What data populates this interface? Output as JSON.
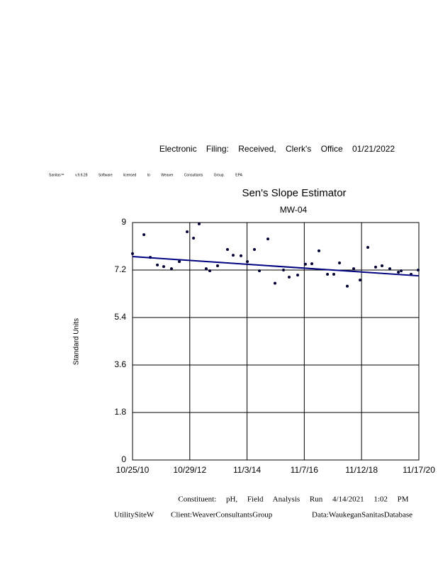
{
  "header": {
    "filing": "Electronic Filing: Received, Clerk's Office 01/21/2022",
    "software": "Sanitas™ v.9.6.28 Software licensed to Weaver Consultants Group. EPA"
  },
  "chart_data": {
    "type": "scatter",
    "title": "Sen's Slope Estimator",
    "subtitle": "MW-04",
    "y_label": "Standard Units",
    "x": [
      "2010-10-25",
      "2011-03-20",
      "2011-06-10",
      "2011-09-09",
      "2011-11-29",
      "2012-03-08",
      "2012-06-17",
      "2012-09-25",
      "2012-12-16",
      "2013-02-26",
      "2013-05-28",
      "2013-07-13",
      "2013-10-21",
      "2014-02-25",
      "2014-05-09",
      "2014-08-17",
      "2014-11-07",
      "2015-02-06",
      "2015-04-11",
      "2015-07-29",
      "2015-10-28",
      "2016-02-14",
      "2016-04-27",
      "2016-08-14",
      "2016-11-22",
      "2017-02-12",
      "2017-05-14",
      "2017-09-01",
      "2017-11-21",
      "2018-02-02",
      "2018-05-13",
      "2018-08-03",
      "2018-10-24",
      "2019-02-01",
      "2019-05-12",
      "2019-08-02",
      "2019-11-10",
      "2020-02-28",
      "2020-04-04",
      "2020-08-09",
      "2020-11-08"
    ],
    "values": [
      7.82,
      8.54,
      7.68,
      7.39,
      7.33,
      7.25,
      7.52,
      8.65,
      8.41,
      8.95,
      7.25,
      7.17,
      7.36,
      7.98,
      7.76,
      7.74,
      7.52,
      7.98,
      7.17,
      8.38,
      6.7,
      7.2,
      6.93,
      7.01,
      7.42,
      7.44,
      7.93,
      7.04,
      7.04,
      7.47,
      6.59,
      7.25,
      6.82,
      8.06,
      7.31,
      7.36,
      7.25,
      7.12,
      7.17,
      7.04,
      7.2
    ],
    "color": "#000033",
    "trend": {
      "x": [
        "2010-10-25",
        "2020-11-17"
      ],
      "values": [
        7.71,
        6.98
      ],
      "color": "#000080"
    },
    "xlim": [
      "2010-10-25",
      "2020-11-17"
    ],
    "xticks": [
      {
        "value": "2010-10-25",
        "label": "10/25/10"
      },
      {
        "value": "2012-10-29",
        "label": "10/29/12"
      },
      {
        "value": "2014-11-03",
        "label": "11/3/14"
      },
      {
        "value": "2016-11-07",
        "label": "11/7/16"
      },
      {
        "value": "2018-11-12",
        "label": "11/12/18"
      },
      {
        "value": "2020-11-17",
        "label": "11/17/20"
      }
    ],
    "ylim": [
      0,
      9
    ],
    "yticks": [
      0,
      1.8,
      3.6,
      5.4,
      7.2,
      9
    ],
    "grid": true
  },
  "footer": {
    "run": "Constituent: pH, Field Analysis Run 4/14/2021 1:02 PM",
    "site": "UtilitySiteW",
    "client": "Client:WeaverConsultantsGroup",
    "data": "Data:WaukeganSanitasDatabase"
  }
}
